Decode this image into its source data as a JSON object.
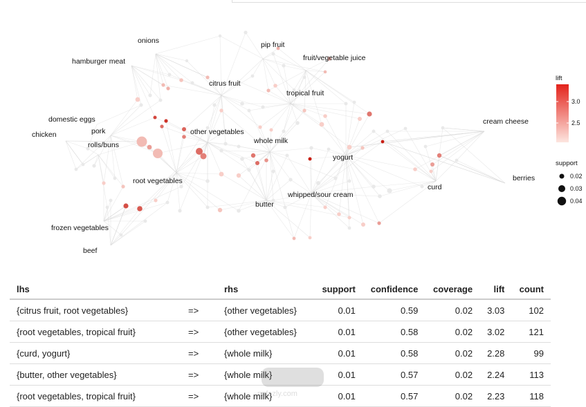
{
  "chart_data": {
    "type": "network",
    "node_labels": [
      "onions",
      "pip fruit",
      "hamburger meat",
      "fruit/vegetable juice",
      "citrus fruit",
      "tropical fruit",
      "domestic eggs",
      "pork",
      "other vegetables",
      "cream cheese",
      "chicken",
      "rolls/buns",
      "whole milk",
      "yogurt",
      "berries",
      "root vegetables",
      "curd",
      "whipped/sour cream",
      "butter",
      "frozen vegetables",
      "beef"
    ],
    "legend": {
      "lift": {
        "title": "lift",
        "ticks": [
          "3.0",
          "2.5"
        ],
        "range": [
          2.23,
          3.03
        ]
      },
      "support": {
        "title": "support",
        "ticks": [
          "0.02",
          "0.03",
          "0.04"
        ]
      }
    }
  },
  "table": {
    "headers": {
      "lhs": "lhs",
      "arrow": "",
      "rhs": "rhs",
      "support": "support",
      "confidence": "confidence",
      "coverage": "coverage",
      "lift": "lift",
      "count": "count"
    },
    "rows": [
      {
        "lhs": "{citrus fruit, root vegetables}",
        "arrow": "=>",
        "rhs": "{other vegetables}",
        "support": "0.01",
        "confidence": "0.59",
        "coverage": "0.02",
        "lift": "3.03",
        "count": "102"
      },
      {
        "lhs": "{root vegetables, tropical fruit}",
        "arrow": "=>",
        "rhs": "{other vegetables}",
        "support": "0.01",
        "confidence": "0.58",
        "coverage": "0.02",
        "lift": "3.02",
        "count": "121"
      },
      {
        "lhs": "{curd, yogurt}",
        "arrow": "=>",
        "rhs": "{whole milk}",
        "support": "0.01",
        "confidence": "0.58",
        "coverage": "0.02",
        "lift": "2.28",
        "count": "99"
      },
      {
        "lhs": "{butter, other vegetables}",
        "arrow": "=>",
        "rhs": "{whole milk}",
        "support": "0.01",
        "confidence": "0.57",
        "coverage": "0.02",
        "lift": "2.24",
        "count": "113"
      },
      {
        "lhs": "{root vegetables, tropical fruit}",
        "arrow": "=>",
        "rhs": "{whole milk}",
        "support": "0.01",
        "confidence": "0.57",
        "coverage": "0.02",
        "lift": "2.23",
        "count": "118"
      }
    ]
  },
  "watermark": "nafezly.com"
}
